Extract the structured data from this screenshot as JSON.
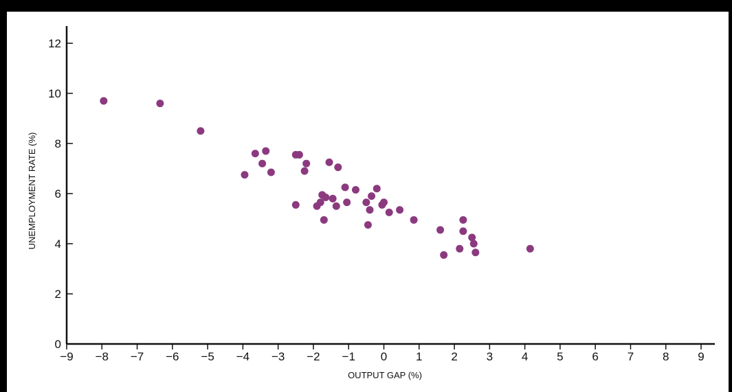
{
  "chart_data": {
    "type": "scatter",
    "title": "",
    "xlabel": "OUTPUT GAP (%)",
    "ylabel": "UNEMPLOYMENT RATE (%)",
    "xlim": [
      -9,
      9
    ],
    "ylim": [
      0,
      12
    ],
    "x_ticks": [
      "−9",
      "−8",
      "−7",
      "−6",
      "−5",
      "−4",
      "−3",
      "−2",
      "−1",
      "0",
      "1",
      "2",
      "3",
      "4",
      "5",
      "6",
      "7",
      "8",
      "9"
    ],
    "y_ticks": [
      "0",
      "2",
      "4",
      "6",
      "8",
      "10",
      "12"
    ],
    "grid": false,
    "marker_color": "#8b3a7f",
    "points": [
      {
        "x": -7.95,
        "y": 9.7
      },
      {
        "x": -6.35,
        "y": 9.6
      },
      {
        "x": -5.2,
        "y": 8.5
      },
      {
        "x": -3.65,
        "y": 7.6
      },
      {
        "x": -3.35,
        "y": 7.7
      },
      {
        "x": -3.45,
        "y": 7.2
      },
      {
        "x": -3.2,
        "y": 6.85
      },
      {
        "x": -3.95,
        "y": 6.75
      },
      {
        "x": -2.5,
        "y": 7.55
      },
      {
        "x": -2.4,
        "y": 7.55
      },
      {
        "x": -2.2,
        "y": 7.2
      },
      {
        "x": -2.25,
        "y": 6.9
      },
      {
        "x": -1.55,
        "y": 7.25
      },
      {
        "x": -1.3,
        "y": 7.05
      },
      {
        "x": -2.5,
        "y": 5.55
      },
      {
        "x": -1.75,
        "y": 5.95
      },
      {
        "x": -1.65,
        "y": 5.85
      },
      {
        "x": -1.45,
        "y": 5.8
      },
      {
        "x": -1.8,
        "y": 5.65
      },
      {
        "x": -1.9,
        "y": 5.5
      },
      {
        "x": -1.35,
        "y": 5.5
      },
      {
        "x": -1.1,
        "y": 6.25
      },
      {
        "x": -0.8,
        "y": 6.15
      },
      {
        "x": -1.05,
        "y": 5.65
      },
      {
        "x": -1.7,
        "y": 4.95
      },
      {
        "x": -0.2,
        "y": 6.2
      },
      {
        "x": -0.35,
        "y": 5.9
      },
      {
        "x": -0.5,
        "y": 5.65
      },
      {
        "x": -0.4,
        "y": 5.35
      },
      {
        "x": -0.05,
        "y": 5.55
      },
      {
        "x": 0.0,
        "y": 5.65
      },
      {
        "x": 0.15,
        "y": 5.25
      },
      {
        "x": 0.45,
        "y": 5.35
      },
      {
        "x": -0.45,
        "y": 4.75
      },
      {
        "x": 0.85,
        "y": 4.95
      },
      {
        "x": 1.6,
        "y": 4.55
      },
      {
        "x": 2.25,
        "y": 4.95
      },
      {
        "x": 2.25,
        "y": 4.5
      },
      {
        "x": 2.5,
        "y": 4.25
      },
      {
        "x": 2.55,
        "y": 4.0
      },
      {
        "x": 2.15,
        "y": 3.8
      },
      {
        "x": 2.6,
        "y": 3.65
      },
      {
        "x": 1.7,
        "y": 3.55
      },
      {
        "x": 4.15,
        "y": 3.8
      }
    ]
  }
}
